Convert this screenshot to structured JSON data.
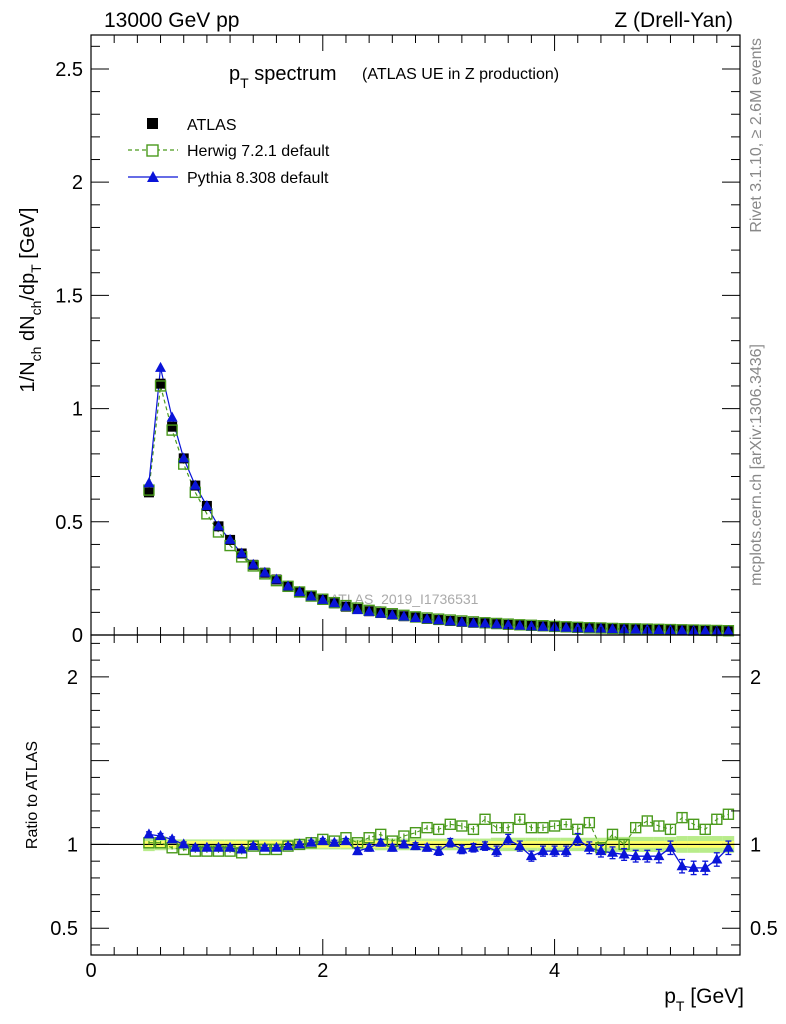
{
  "header": {
    "left": "13000 GeV pp",
    "right": "Z (Drell-Yan)"
  },
  "side": {
    "rivet": "Rivet 3.1.10, ≥ 2.6M events",
    "mcplots": "mcplots.cern.ch [arXiv:1306.3436]"
  },
  "chart_data": [
    {
      "type": "line",
      "title_main": "p",
      "title_sub": "T",
      "title_rest": " spectrum",
      "title_small": "(ATLAS UE in Z production)",
      "watermark": "ATLAS_2019_I1736531",
      "ylabel": {
        "a": "1/N",
        "b": "ch",
        "c": " dN",
        "d": "ch",
        "e": "/dp",
        "f": "T",
        "g": " [GeV]"
      },
      "xlim": [
        0,
        5.6
      ],
      "ylim": [
        0,
        2.65
      ],
      "yticks": [
        {
          "v": 0,
          "label": "0"
        },
        {
          "v": 0.5,
          "label": "0.5"
        },
        {
          "v": 1,
          "label": "1"
        },
        {
          "v": 1.5,
          "label": "1.5"
        },
        {
          "v": 2,
          "label": "2"
        },
        {
          "v": 2.5,
          "label": "2.5"
        }
      ],
      "legend": [
        {
          "label": "ATLAS",
          "style": "data"
        },
        {
          "label": "Herwig 7.2.1 default",
          "style": "herwig"
        },
        {
          "label": "Pythia 8.308 default",
          "style": "pythia"
        }
      ],
      "x": [
        0.5,
        0.6,
        0.7,
        0.8,
        0.9,
        1.0,
        1.1,
        1.2,
        1.3,
        1.4,
        1.5,
        1.6,
        1.7,
        1.8,
        1.9,
        2.0,
        2.1,
        2.2,
        2.3,
        2.4,
        2.5,
        2.6,
        2.7,
        2.8,
        2.9,
        3.0,
        3.1,
        3.2,
        3.3,
        3.4,
        3.5,
        3.6,
        3.7,
        3.8,
        3.9,
        4.0,
        4.1,
        4.2,
        4.3,
        4.4,
        4.5,
        4.6,
        4.7,
        4.8,
        4.9,
        5.0,
        5.1,
        5.2,
        5.3,
        5.4,
        5.5
      ],
      "series": [
        {
          "name": "ATLAS",
          "values": [
            0.63,
            1.11,
            0.92,
            0.78,
            0.66,
            0.57,
            0.48,
            0.42,
            0.36,
            0.31,
            0.275,
            0.245,
            0.215,
            0.19,
            0.17,
            0.155,
            0.14,
            0.125,
            0.115,
            0.105,
            0.097,
            0.09,
            0.083,
            0.077,
            0.071,
            0.066,
            0.062,
            0.058,
            0.054,
            0.051,
            0.048,
            0.045,
            0.042,
            0.04,
            0.038,
            0.036,
            0.034,
            0.032,
            0.03,
            0.029,
            0.027,
            0.026,
            0.025,
            0.024,
            0.023,
            0.022,
            0.021,
            0.02,
            0.019,
            0.018,
            0.017
          ]
        },
        {
          "name": "Herwig 7.2.1 default",
          "values": [
            0.64,
            1.1,
            0.905,
            0.755,
            0.63,
            0.535,
            0.455,
            0.395,
            0.345,
            0.305,
            0.27,
            0.24,
            0.215,
            0.19,
            0.172,
            0.158,
            0.143,
            0.13,
            0.119,
            0.109,
            0.101,
            0.094,
            0.087,
            0.08,
            0.075,
            0.07,
            0.066,
            0.062,
            0.058,
            0.054,
            0.051,
            0.048,
            0.045,
            0.043,
            0.041,
            0.038,
            0.036,
            0.034,
            0.032,
            0.031,
            0.029,
            0.028,
            0.027,
            0.026,
            0.025,
            0.024,
            0.023,
            0.022,
            0.021,
            0.02,
            0.019
          ]
        },
        {
          "name": "Pythia 8.308 default",
          "values": [
            0.67,
            1.18,
            0.96,
            0.78,
            0.66,
            0.57,
            0.48,
            0.42,
            0.36,
            0.31,
            0.275,
            0.245,
            0.215,
            0.19,
            0.17,
            0.155,
            0.14,
            0.125,
            0.11,
            0.102,
            0.094,
            0.088,
            0.081,
            0.075,
            0.07,
            0.065,
            0.06,
            0.056,
            0.052,
            0.05,
            0.047,
            0.044,
            0.041,
            0.038,
            0.036,
            0.034,
            0.032,
            0.03,
            0.029,
            0.028,
            0.026,
            0.025,
            0.024,
            0.023,
            0.022,
            0.021,
            0.019,
            0.018,
            0.017,
            0.016,
            0.016
          ]
        }
      ]
    },
    {
      "type": "line",
      "ylabel": "Ratio to ATLAS",
      "xlabel_main": "p",
      "xlabel_sub": "T",
      "xlabel_rest": " [GeV]",
      "xlim": [
        0,
        5.6
      ],
      "ylim": [
        0.34,
        2.25
      ],
      "yticks": [
        {
          "v": 0.5,
          "label": "0.5"
        },
        {
          "v": 1,
          "label": "1"
        },
        {
          "v": 2,
          "label": "2"
        }
      ],
      "xticks": [
        {
          "v": 0,
          "label": "0"
        },
        {
          "v": 2,
          "label": "2"
        },
        {
          "v": 4,
          "label": "4"
        }
      ],
      "x": [
        0.5,
        0.6,
        0.7,
        0.8,
        0.9,
        1.0,
        1.1,
        1.2,
        1.3,
        1.4,
        1.5,
        1.6,
        1.7,
        1.8,
        1.9,
        2.0,
        2.1,
        2.2,
        2.3,
        2.4,
        2.5,
        2.6,
        2.7,
        2.8,
        2.9,
        3.0,
        3.1,
        3.2,
        3.3,
        3.4,
        3.5,
        3.6,
        3.7,
        3.8,
        3.9,
        4.0,
        4.1,
        4.2,
        4.3,
        4.4,
        4.5,
        4.6,
        4.7,
        4.8,
        4.9,
        5.0,
        5.1,
        5.2,
        5.3,
        5.4,
        5.5
      ],
      "band": {
        "inner": [
          0.02,
          0.02,
          0.02,
          0.02,
          0.02,
          0.02,
          0.02,
          0.02,
          0.02,
          0.02,
          0.02,
          0.02,
          0.02,
          0.02,
          0.02,
          0.02,
          0.02,
          0.02,
          0.02,
          0.02,
          0.02,
          0.02,
          0.02,
          0.02,
          0.02,
          0.02,
          0.02,
          0.02,
          0.02,
          0.02,
          0.02,
          0.02,
          0.02,
          0.02,
          0.02,
          0.02,
          0.02,
          0.02,
          0.02,
          0.02,
          0.02,
          0.02,
          0.02,
          0.02,
          0.02,
          0.02,
          0.02,
          0.02,
          0.02,
          0.02,
          0.02
        ],
        "outer": [
          0.04,
          0.035,
          0.03,
          0.03,
          0.03,
          0.03,
          0.03,
          0.03,
          0.03,
          0.03,
          0.03,
          0.03,
          0.03,
          0.03,
          0.03,
          0.03,
          0.03,
          0.03,
          0.03,
          0.03,
          0.035,
          0.035,
          0.035,
          0.035,
          0.035,
          0.035,
          0.035,
          0.035,
          0.035,
          0.035,
          0.04,
          0.04,
          0.04,
          0.04,
          0.04,
          0.04,
          0.04,
          0.04,
          0.04,
          0.04,
          0.045,
          0.045,
          0.045,
          0.045,
          0.045,
          0.045,
          0.05,
          0.05,
          0.05,
          0.05,
          0.05
        ]
      },
      "series": [
        {
          "name": "Herwig 7.2.1 default",
          "values": [
            1.01,
            1.01,
            0.98,
            0.97,
            0.96,
            0.96,
            0.96,
            0.96,
            0.95,
            0.99,
            0.97,
            0.97,
            0.99,
            1.0,
            1.01,
            1.03,
            1.02,
            1.04,
            1.01,
            1.04,
            1.06,
            1.02,
            1.05,
            1.07,
            1.1,
            1.09,
            1.12,
            1.11,
            1.09,
            1.15,
            1.1,
            1.1,
            1.15,
            1.1,
            1.1,
            1.11,
            1.12,
            1.09,
            1.13,
            0.98,
            1.06,
            1.0,
            1.1,
            1.14,
            1.11,
            1.09,
            1.16,
            1.12,
            1.09,
            1.15,
            1.18
          ],
          "errors": [
            0.01,
            0.01,
            0.01,
            0.01,
            0.01,
            0.01,
            0.01,
            0.01,
            0.01,
            0.01,
            0.01,
            0.01,
            0.01,
            0.01,
            0.01,
            0.01,
            0.01,
            0.01,
            0.015,
            0.015,
            0.015,
            0.015,
            0.015,
            0.015,
            0.015,
            0.02,
            0.02,
            0.02,
            0.02,
            0.02,
            0.02,
            0.02,
            0.02,
            0.02,
            0.02,
            0.02,
            0.02,
            0.025,
            0.025,
            0.025,
            0.025,
            0.025,
            0.025,
            0.025,
            0.03,
            0.03,
            0.03,
            0.03,
            0.03,
            0.03,
            0.03
          ]
        },
        {
          "name": "Pythia 8.308 default",
          "values": [
            1.06,
            1.05,
            1.03,
            1.0,
            0.98,
            0.98,
            0.98,
            0.98,
            0.97,
            0.99,
            0.98,
            0.98,
            0.99,
            1.0,
            1.01,
            1.02,
            1.01,
            1.02,
            0.96,
            0.98,
            1.01,
            0.98,
            1.0,
            0.99,
            0.98,
            0.96,
            1.01,
            0.97,
            0.98,
            0.99,
            0.96,
            1.03,
            0.99,
            0.93,
            0.96,
            0.96,
            0.96,
            1.03,
            0.98,
            0.96,
            0.95,
            0.94,
            0.93,
            0.93,
            0.93,
            0.98,
            0.87,
            0.86,
            0.86,
            0.91,
            0.98
          ],
          "errors": [
            0.015,
            0.015,
            0.015,
            0.015,
            0.015,
            0.015,
            0.015,
            0.015,
            0.015,
            0.015,
            0.015,
            0.015,
            0.015,
            0.015,
            0.015,
            0.015,
            0.015,
            0.015,
            0.02,
            0.02,
            0.02,
            0.02,
            0.02,
            0.02,
            0.02,
            0.025,
            0.025,
            0.025,
            0.025,
            0.025,
            0.03,
            0.03,
            0.03,
            0.03,
            0.03,
            0.03,
            0.03,
            0.035,
            0.035,
            0.035,
            0.035,
            0.035,
            0.035,
            0.035,
            0.04,
            0.04,
            0.04,
            0.04,
            0.04,
            0.04,
            0.04
          ]
        }
      ]
    }
  ],
  "colors": {
    "herwig": "#4a9a1c",
    "pythia": "#0a14d8",
    "band_inner": "#ffff66",
    "band_outer": "#b8ec8a",
    "data": "#000000"
  }
}
